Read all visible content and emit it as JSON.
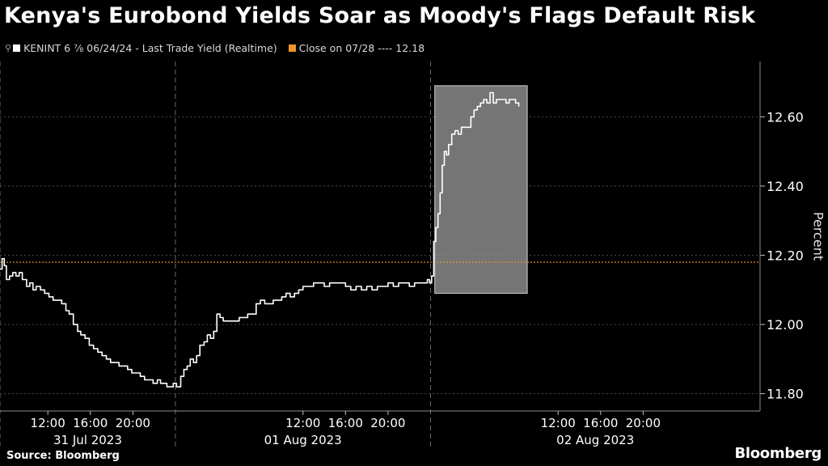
{
  "header": {
    "title": "Kenya's Eurobond Yields Soar as Moody's Flags Default Risk"
  },
  "legend": {
    "series_label": "KENINT 6 ⅞ 06/24/24 - Last Trade Yield (Realtime)",
    "close_label": "Close on 07/28 ---- 12.18"
  },
  "footer": {
    "source": "Source: Bloomberg",
    "brand": "Bloomberg"
  },
  "colors": {
    "background": "#000000",
    "line": "#ffffff",
    "close_line": "#f0962a",
    "highlight": "#8a8a8a",
    "grid": "#4a4a4a"
  },
  "chart_data": {
    "type": "line",
    "title": "Kenya's Eurobond Yields Soar as Moody's Flags Default Risk",
    "ylabel": "Percent",
    "ylim": [
      11.75,
      12.76
    ],
    "yticks": [
      11.8,
      12.0,
      12.2,
      12.4,
      12.6
    ],
    "ytick_labels": [
      "11.80",
      "12.00",
      "12.20",
      "12.40",
      "12.60"
    ],
    "xlim_hours": [
      7.5,
      79
    ],
    "day_groups": [
      {
        "label": "31 Jul 2023",
        "start_hour": 7.5,
        "end_hour": 24
      },
      {
        "label": "01 Aug 2023",
        "start_hour": 24,
        "end_hour": 48
      },
      {
        "label": "02 Aug 2023",
        "start_hour": 48,
        "end_hour": 79
      }
    ],
    "day_separators_hours": [
      7.5,
      24,
      48
    ],
    "xticks": [
      {
        "hour": 12,
        "label": "12:00"
      },
      {
        "hour": 16,
        "label": "16:00"
      },
      {
        "hour": 20,
        "label": "20:00"
      },
      {
        "hour": 36,
        "label": "12:00"
      },
      {
        "hour": 40,
        "label": "16:00"
      },
      {
        "hour": 44,
        "label": "20:00"
      },
      {
        "hour": 60,
        "label": "12:00"
      },
      {
        "hour": 64,
        "label": "16:00"
      },
      {
        "hour": 68,
        "label": "20:00"
      }
    ],
    "reference_line": {
      "name": "Close on 07/28",
      "value": 12.18
    },
    "highlight": {
      "x_start_hour": 48.4,
      "x_end_hour": 57.1,
      "y_low": 12.09,
      "y_high": 12.69
    },
    "series": [
      {
        "name": "KENINT 6 ⅞ 06/24/24 - Last Trade Yield (Realtime)",
        "x": [
          7.5,
          7.7,
          7.9,
          8.1,
          8.4,
          8.7,
          9.0,
          9.3,
          9.6,
          10.0,
          10.3,
          10.6,
          10.9,
          11.3,
          11.7,
          12.1,
          12.5,
          12.9,
          13.3,
          13.7,
          14.0,
          14.4,
          14.8,
          15.1,
          15.5,
          15.9,
          16.3,
          16.7,
          17.1,
          17.5,
          17.9,
          18.3,
          18.7,
          19.1,
          19.5,
          19.9,
          20.3,
          20.7,
          21.1,
          21.5,
          21.9,
          22.3,
          22.6,
          22.9,
          23.2,
          23.5,
          23.8,
          24.1,
          24.5,
          24.8,
          25.1,
          25.4,
          25.7,
          26.0,
          26.3,
          26.7,
          27.0,
          27.3,
          27.6,
          27.9,
          28.2,
          28.5,
          28.8,
          29.2,
          29.6,
          30.0,
          30.4,
          30.8,
          31.2,
          31.6,
          32.0,
          32.4,
          32.8,
          33.2,
          33.6,
          34.0,
          34.4,
          34.8,
          35.2,
          35.6,
          36.0,
          36.5,
          37.0,
          37.5,
          38.0,
          38.5,
          39.0,
          39.5,
          40.0,
          40.5,
          41.0,
          41.5,
          42.0,
          42.5,
          43.0,
          43.5,
          44.0,
          44.5,
          45.0,
          45.5,
          46.0,
          46.5,
          47.0,
          47.4,
          47.7,
          47.9,
          48.0,
          48.1,
          48.3,
          48.5,
          48.7,
          48.9,
          49.1,
          49.3,
          49.5,
          49.7,
          50.0,
          50.3,
          50.6,
          50.9,
          51.2,
          51.5,
          51.8,
          52.1,
          52.4,
          52.7,
          53.0,
          53.3,
          53.6,
          53.9,
          54.2,
          54.5,
          54.8,
          55.1,
          55.4,
          55.7,
          56.0,
          56.3
        ],
        "y": [
          12.16,
          12.19,
          12.17,
          12.13,
          12.14,
          12.15,
          12.14,
          12.15,
          12.13,
          12.11,
          12.12,
          12.1,
          12.11,
          12.1,
          12.09,
          12.08,
          12.07,
          12.07,
          12.06,
          12.04,
          12.03,
          12.0,
          11.98,
          11.97,
          11.96,
          11.94,
          11.93,
          11.92,
          11.91,
          11.9,
          11.89,
          11.89,
          11.88,
          11.88,
          11.87,
          11.86,
          11.86,
          11.85,
          11.84,
          11.84,
          11.83,
          11.84,
          11.83,
          11.83,
          11.82,
          11.82,
          11.83,
          11.82,
          11.85,
          11.87,
          11.88,
          11.9,
          11.89,
          11.91,
          11.94,
          11.95,
          11.97,
          11.96,
          11.98,
          12.03,
          12.02,
          12.01,
          12.01,
          12.01,
          12.01,
          12.02,
          12.02,
          12.03,
          12.03,
          12.06,
          12.07,
          12.06,
          12.06,
          12.07,
          12.07,
          12.08,
          12.09,
          12.08,
          12.09,
          12.1,
          12.11,
          12.11,
          12.12,
          12.12,
          12.11,
          12.12,
          12.12,
          12.12,
          12.11,
          12.1,
          12.11,
          12.1,
          12.11,
          12.1,
          12.11,
          12.11,
          12.12,
          12.11,
          12.12,
          12.12,
          12.11,
          12.12,
          12.12,
          12.12,
          12.13,
          12.12,
          12.12,
          12.14,
          12.24,
          12.28,
          12.32,
          12.38,
          12.46,
          12.5,
          12.49,
          12.52,
          12.55,
          12.56,
          12.55,
          12.57,
          12.57,
          12.57,
          12.6,
          12.62,
          12.63,
          12.64,
          12.65,
          12.64,
          12.67,
          12.64,
          12.65,
          12.65,
          12.65,
          12.64,
          12.65,
          12.65,
          12.64,
          12.63
        ]
      }
    ]
  }
}
